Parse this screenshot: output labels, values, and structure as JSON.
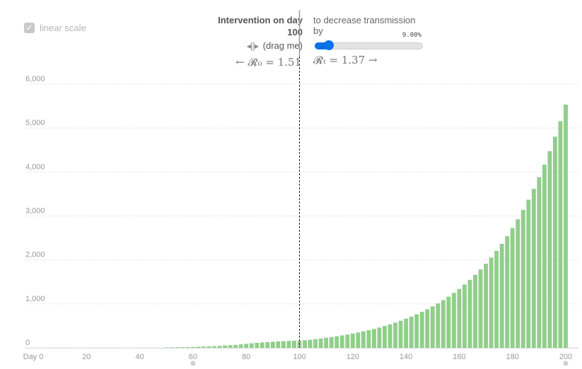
{
  "controls": {
    "linear_scale_checkbox": "✓",
    "linear_scale_label": "linear scale",
    "intervention_title": "Intervention on day",
    "intervention_day": "100",
    "drag_icon": "◂||▸",
    "drag_label": "(drag me)",
    "r0_text": "← 𝓡₀ = 1.51",
    "transmission_label": "to decrease transmission by",
    "transmission_pct_text": "9.00%",
    "transmission_pct_value": 9.0,
    "slider_max": 100,
    "rt_text": "𝓡ₜ = 1.37 →"
  },
  "colors": {
    "bar": "#8fcf89",
    "slider": "#0a72e9",
    "grid": "#e2e2e2",
    "intervention_line": "#222222"
  },
  "chart_data": {
    "type": "bar",
    "title": "",
    "xlabel": "",
    "ylabel": "",
    "x_ticks": [
      {
        "value": 0,
        "label": "Day 0"
      },
      {
        "value": 20,
        "label": "20"
      },
      {
        "value": 40,
        "label": "40"
      },
      {
        "value": 60,
        "label": "60"
      },
      {
        "value": 80,
        "label": "80"
      },
      {
        "value": 100,
        "label": "100"
      },
      {
        "value": 120,
        "label": "120"
      },
      {
        "value": 140,
        "label": "140"
      },
      {
        "value": 160,
        "label": "160"
      },
      {
        "value": 180,
        "label": "180"
      },
      {
        "value": 200,
        "label": "200"
      }
    ],
    "y_ticks": [
      {
        "value": 0,
        "label": "0"
      },
      {
        "value": 1000,
        "label": "1,000"
      },
      {
        "value": 2000,
        "label": "2,000"
      },
      {
        "value": 3000,
        "label": "3,000"
      },
      {
        "value": 4000,
        "label": "4,000"
      },
      {
        "value": 5000,
        "label": "5,000"
      },
      {
        "value": 6000,
        "label": "6,000"
      }
    ],
    "xlim": [
      0,
      200
    ],
    "ylim": [
      0,
      6000
    ],
    "grid": true,
    "intervention_day": 100,
    "scroll_marker_days": [
      60,
      200
    ],
    "series": [
      {
        "x": [
          50,
          52,
          54,
          56,
          58,
          60,
          62,
          64,
          66,
          68,
          70,
          72,
          74,
          76,
          78,
          80,
          82,
          84,
          86,
          88,
          90,
          92,
          94,
          96,
          98,
          100,
          102,
          104,
          106,
          108,
          110,
          112,
          114,
          116,
          118,
          120,
          122,
          124,
          126,
          128,
          130,
          132,
          134,
          136,
          138,
          140,
          142,
          144,
          146,
          148,
          150,
          152,
          154,
          156,
          158,
          160,
          162,
          164,
          166,
          168,
          170,
          172,
          174,
          176,
          178,
          180,
          182,
          184,
          186,
          188,
          190,
          192,
          194,
          196,
          198,
          200
        ],
        "values": [
          8,
          10,
          12,
          14,
          16,
          20,
          24,
          28,
          32,
          38,
          44,
          52,
          60,
          68,
          78,
          90,
          102,
          112,
          122,
          130,
          138,
          146,
          150,
          156,
          160,
          162,
          172,
          185,
          198,
          212,
          228,
          245,
          262,
          282,
          302,
          325,
          348,
          374,
          400,
          430,
          462,
          497,
          534,
          574,
          616,
          662,
          710,
          762,
          818,
          878,
          942,
          1010,
          1085,
          1164,
          1250,
          1341,
          1440,
          1546,
          1660,
          1782,
          1913,
          2053,
          2204,
          2366,
          2540,
          2725,
          2925,
          3140,
          3370,
          3617,
          3883,
          4168,
          4475,
          4804,
          5157,
          5535
        ]
      }
    ]
  }
}
